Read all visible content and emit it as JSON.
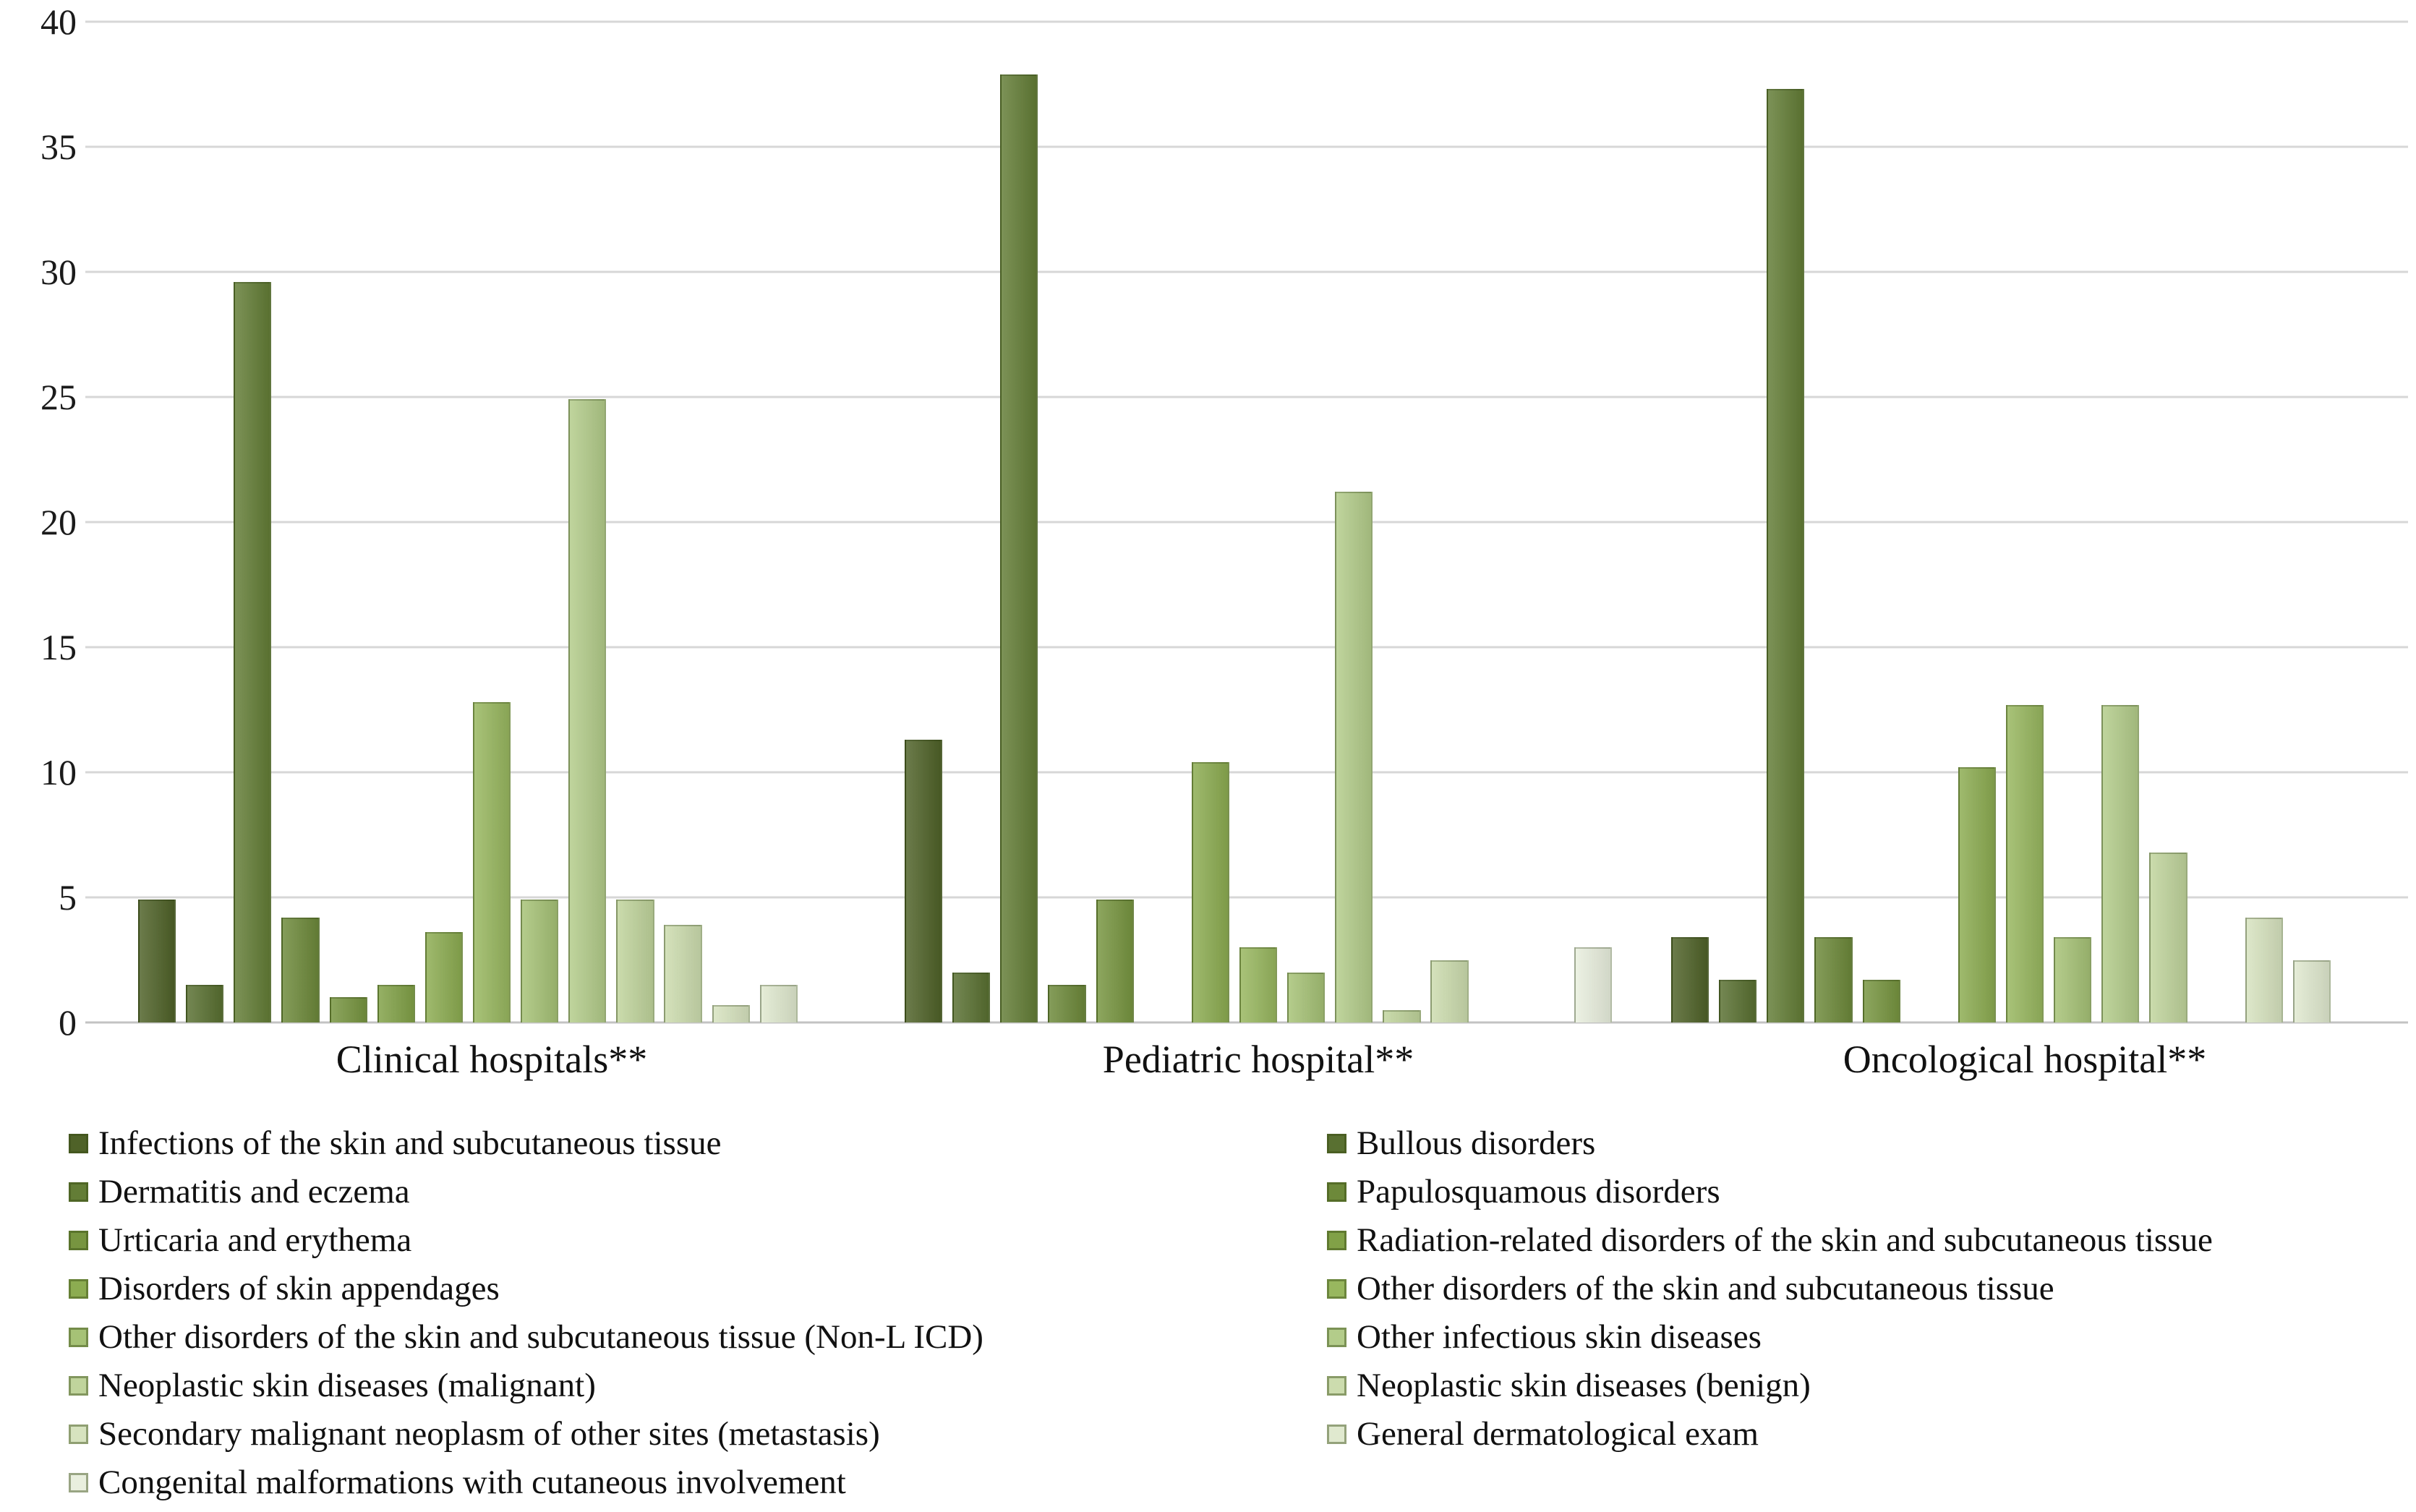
{
  "chart_data": {
    "type": "bar",
    "title": "",
    "xlabel": "",
    "ylabel": "",
    "ylim": [
      0,
      40
    ],
    "y_ticks": [
      0,
      5,
      10,
      15,
      20,
      25,
      30,
      35,
      40
    ],
    "grid": "horizontal",
    "gridline_color": "#d7d7d7",
    "legend_position": "bottom, two columns",
    "categories": [
      "Clinical hospitals**",
      "Pediatric hospital**",
      "Oncological hospital**"
    ],
    "series": [
      {
        "name": "Infections of the skin and subcutaneous tissue",
        "color": "#4f6228",
        "values": [
          4.9,
          11.3,
          3.4
        ]
      },
      {
        "name": "Bullous disorders",
        "color": "#597031",
        "values": [
          1.5,
          2.0,
          1.7
        ]
      },
      {
        "name": "Dermatitis and eczema",
        "color": "#637d36",
        "values": [
          29.6,
          37.9,
          37.3
        ]
      },
      {
        "name": "Papulosquamous disorders",
        "color": "#6d893a",
        "values": [
          4.2,
          1.5,
          3.4
        ]
      },
      {
        "name": "Urticaria and erythema",
        "color": "#779540",
        "values": [
          1.0,
          4.9,
          1.7
        ]
      },
      {
        "name": "Radiation-related disorders of the skin and subcutaneous tissue",
        "color": "#81a147",
        "values": [
          1.5,
          0,
          0
        ]
      },
      {
        "name": "Disorders of skin appendages",
        "color": "#8cac51",
        "values": [
          3.6,
          10.4,
          10.2
        ]
      },
      {
        "name": "Other disorders of the skin and subcutaneous tissue",
        "color": "#98b75f",
        "values": [
          12.8,
          3.0,
          12.7
        ]
      },
      {
        "name": "Other disorders of the skin and subcutaneous tissue (Non-L ICD)",
        "color": "#a6c276",
        "values": [
          4.9,
          2.0,
          3.4
        ]
      },
      {
        "name": "Other infectious skin diseases",
        "color": "#b3cc8a",
        "values": [
          24.9,
          21.2,
          12.7
        ]
      },
      {
        "name": "Neoplastic skin diseases (malignant)",
        "color": "#c0d49c",
        "values": [
          4.9,
          0.5,
          6.8
        ]
      },
      {
        "name": "Neoplastic skin diseases (benign)",
        "color": "#ccdcae",
        "values": [
          3.9,
          2.5,
          0
        ]
      },
      {
        "name": "Secondary malignant neoplasm of other sites (metastasis)",
        "color": "#d7e3bf",
        "values": [
          0.7,
          0,
          4.2
        ]
      },
      {
        "name": "General dermatological exam",
        "color": "#e0e9cf",
        "values": [
          1.5,
          0,
          2.5
        ]
      },
      {
        "name": "Congenital malformations with cutaneous involvement",
        "color": "#e9efde",
        "values": [
          0,
          3.0,
          0
        ]
      }
    ],
    "legend_columns": {
      "left": [
        0,
        2,
        4,
        6,
        8,
        10,
        12,
        14
      ],
      "right": [
        1,
        3,
        5,
        7,
        9,
        11,
        13
      ]
    }
  }
}
